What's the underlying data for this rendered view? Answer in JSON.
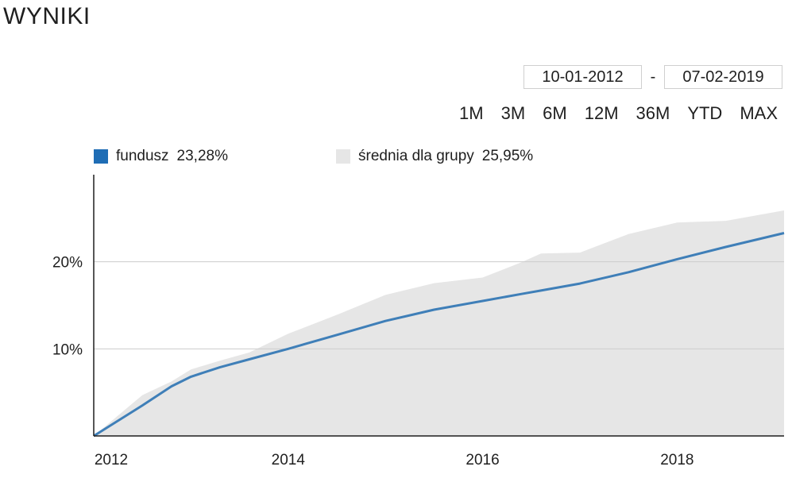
{
  "header": {
    "title": "WYNIKI"
  },
  "date_range": {
    "from": "10-01-2012",
    "separator": "-",
    "to": "07-02-2019"
  },
  "periods": [
    "1M",
    "3M",
    "6M",
    "12M",
    "36M",
    "YTD",
    "MAX"
  ],
  "legend": [
    {
      "label": "fundusz",
      "value": "23,28%",
      "color": "#1f6db5"
    },
    {
      "label": "średnia dla grupy",
      "value": "25,95%",
      "color": "#e6e6e6"
    }
  ],
  "chart_data": {
    "type": "area",
    "title": "",
    "xlabel": "",
    "ylabel": "",
    "x_ticks": [
      "2012",
      "2014",
      "2016",
      "2018"
    ],
    "y_ticks": [
      "10%",
      "20%"
    ],
    "y_tick_values": [
      10,
      20
    ],
    "xlim": [
      2012.0,
      2019.1
    ],
    "ylim": [
      0,
      30
    ],
    "grid": true,
    "legend_position": "top-left",
    "x": [
      2012.0,
      2012.5,
      2012.8,
      2013.0,
      2013.3,
      2013.6,
      2014.0,
      2014.5,
      2015.0,
      2015.5,
      2016.0,
      2016.4,
      2016.6,
      2017.0,
      2017.5,
      2018.0,
      2018.5,
      2019.1
    ],
    "series": [
      {
        "name": "fundusz",
        "type": "line",
        "color": "#3f7fb8",
        "values": [
          0,
          3.5,
          5.7,
          6.8,
          7.9,
          8.8,
          10.0,
          11.6,
          13.2,
          14.5,
          15.5,
          16.3,
          16.7,
          17.5,
          18.8,
          20.3,
          21.7,
          23.3
        ]
      },
      {
        "name": "średnia dla grupy",
        "type": "area",
        "color": "#e6e6e6",
        "values": [
          0,
          4.5,
          6.5,
          7.5,
          8.6,
          9.8,
          11.5,
          14.0,
          16.3,
          17.3,
          18.4,
          19.9,
          20.8,
          21.3,
          23.0,
          24.5,
          24.9,
          25.9
        ]
      }
    ]
  }
}
